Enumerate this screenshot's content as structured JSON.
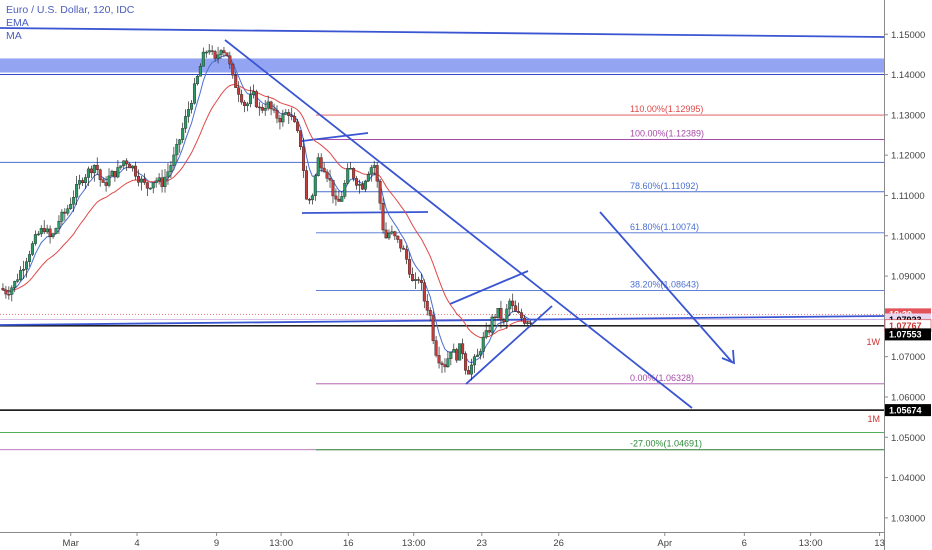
{
  "legend": {
    "title": "Euro / U.S. Dollar, 120, IDC",
    "line2": "EMA",
    "line3": "MA"
  },
  "chart_data": {
    "type": "candlestick",
    "title": "Euro / U.S. Dollar, 120, IDC",
    "xlabel": "",
    "ylabel": "",
    "ylim": [
      1.0265,
      1.1585
    ],
    "y_ticks": [
      1.03,
      1.04,
      1.05,
      1.06,
      1.07,
      1.08,
      1.09,
      1.1,
      1.11,
      1.12,
      1.13,
      1.14,
      1.15
    ],
    "y_tick_labels": [
      "1.03000",
      "1.04000",
      "1.05000",
      "1.06000",
      "1.07000",
      "1.08000",
      "1.09000",
      "1.10000",
      "1.11000",
      "1.12000",
      "1.13000",
      "1.14000",
      "1.15000"
    ],
    "x_ticks": [
      {
        "label": "Mar",
        "t": 0.08
      },
      {
        "label": "4",
        "t": 0.155
      },
      {
        "label": "9",
        "t": 0.245
      },
      {
        "label": "13:00",
        "t": 0.318
      },
      {
        "label": "16",
        "t": 0.394
      },
      {
        "label": "13:00",
        "t": 0.468
      },
      {
        "label": "23",
        "t": 0.545
      },
      {
        "label": "26",
        "t": 0.632
      },
      {
        "label": "Apr",
        "t": 0.752
      },
      {
        "label": "6",
        "t": 0.842
      },
      {
        "label": "13:00",
        "t": 0.917
      },
      {
        "label": "13",
        "t": 0.995
      }
    ],
    "price_path": [
      [
        0.0,
        1.087
      ],
      [
        0.008,
        1.086
      ],
      [
        0.016,
        1.088
      ],
      [
        0.025,
        1.092
      ],
      [
        0.033,
        1.096
      ],
      [
        0.042,
        1.1
      ],
      [
        0.05,
        1.102
      ],
      [
        0.058,
        1.099
      ],
      [
        0.067,
        1.104
      ],
      [
        0.075,
        1.106
      ],
      [
        0.083,
        1.11
      ],
      [
        0.092,
        1.114
      ],
      [
        0.1,
        1.116
      ],
      [
        0.108,
        1.118
      ],
      [
        0.116,
        1.112
      ],
      [
        0.125,
        1.115
      ],
      [
        0.133,
        1.116
      ],
      [
        0.141,
        1.119
      ],
      [
        0.15,
        1.117
      ],
      [
        0.158,
        1.114
      ],
      [
        0.166,
        1.112
      ],
      [
        0.175,
        1.114
      ],
      [
        0.183,
        1.113
      ],
      [
        0.19,
        1.116
      ],
      [
        0.198,
        1.12
      ],
      [
        0.206,
        1.126
      ],
      [
        0.214,
        1.132
      ],
      [
        0.222,
        1.138
      ],
      [
        0.229,
        1.144
      ],
      [
        0.236,
        1.147
      ],
      [
        0.243,
        1.143
      ],
      [
        0.25,
        1.147
      ],
      [
        0.257,
        1.145
      ],
      [
        0.263,
        1.139
      ],
      [
        0.27,
        1.136
      ],
      [
        0.278,
        1.132
      ],
      [
        0.286,
        1.135
      ],
      [
        0.294,
        1.131
      ],
      [
        0.302,
        1.133
      ],
      [
        0.31,
        1.13
      ],
      [
        0.318,
        1.129
      ],
      [
        0.326,
        1.131
      ],
      [
        0.334,
        1.127
      ],
      [
        0.341,
        1.122
      ],
      [
        0.347,
        1.108
      ],
      [
        0.353,
        1.11
      ],
      [
        0.36,
        1.119
      ],
      [
        0.367,
        1.117
      ],
      [
        0.374,
        1.113
      ],
      [
        0.381,
        1.107
      ],
      [
        0.388,
        1.111
      ],
      [
        0.395,
        1.117
      ],
      [
        0.402,
        1.114
      ],
      [
        0.409,
        1.112
      ],
      [
        0.416,
        1.116
      ],
      [
        0.423,
        1.118
      ],
      [
        0.429,
        1.11
      ],
      [
        0.435,
        1.099
      ],
      [
        0.441,
        1.101
      ],
      [
        0.448,
        1.099
      ],
      [
        0.455,
        1.097
      ],
      [
        0.462,
        1.093
      ],
      [
        0.468,
        1.087
      ],
      [
        0.474,
        1.09
      ],
      [
        0.48,
        1.084
      ],
      [
        0.486,
        1.081
      ],
      [
        0.492,
        1.072
      ],
      [
        0.498,
        1.069
      ],
      [
        0.504,
        1.068
      ],
      [
        0.51,
        1.072
      ],
      [
        0.516,
        1.07
      ],
      [
        0.522,
        1.073
      ],
      [
        0.528,
        1.066
      ],
      [
        0.534,
        1.068
      ],
      [
        0.54,
        1.07
      ],
      [
        0.546,
        1.074
      ],
      [
        0.552,
        1.076
      ],
      [
        0.558,
        1.08
      ],
      [
        0.564,
        1.081
      ],
      [
        0.57,
        1.078
      ],
      [
        0.576,
        1.084
      ],
      [
        0.582,
        1.081
      ],
      [
        0.588,
        1.08
      ],
      [
        0.594,
        1.079
      ],
      [
        0.6,
        1.0792
      ]
    ],
    "fibonacci": [
      {
        "label": "110.00%(1.12995)",
        "value": 1.12995,
        "color": "#e04848"
      },
      {
        "label": "100.00%(1.12389)",
        "value": 1.12389,
        "color": "#a64ca6"
      },
      {
        "label": "78.60%(1.11092)",
        "value": 1.11092,
        "color": "#4a6fd1"
      },
      {
        "label": "61.80%(1.10074)",
        "value": 1.10074,
        "color": "#4a6fd1"
      },
      {
        "label": "38.20%(1.08643)",
        "value": 1.08643,
        "color": "#4a6fd1"
      },
      {
        "label": "0.00%(1.06328)",
        "value": 1.06328,
        "color": "#a64ca6"
      },
      {
        "label": "-27.00%(1.04691)",
        "value": 1.04691,
        "color": "#2e8b3a"
      }
    ],
    "price_tags": [
      {
        "label": "18:39",
        "value": 1.0805,
        "bg": "#e2545a",
        "fg": "#ffffff"
      },
      {
        "label": "1.07923",
        "value": 1.07923,
        "bg": "#e8d7f0",
        "fg": "#000000"
      },
      {
        "label": "1.07767",
        "value": 1.07767,
        "bg": "#ffffff",
        "fg": "#d23030"
      },
      {
        "label": "1.07553",
        "value": 1.07553,
        "bg": "#000000",
        "fg": "#ffffff"
      },
      {
        "label": "1.05674",
        "value": 1.05674,
        "bg": "#000000",
        "fg": "#ffffff"
      }
    ],
    "timeframe_labels": [
      {
        "label": "1W",
        "value": 1.0736
      },
      {
        "label": "1M",
        "value": 1.0545
      }
    ],
    "resistance_zone": [
      1.1405,
      1.144
    ]
  }
}
